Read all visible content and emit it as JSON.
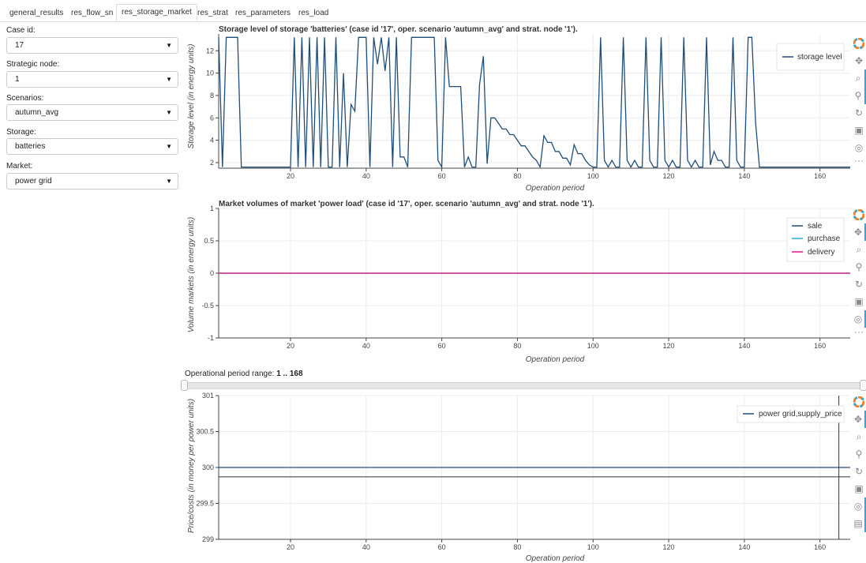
{
  "tabs": [
    {
      "label": "general_results",
      "active": false
    },
    {
      "label": "res_flow_sn",
      "active": false
    },
    {
      "label": "res_storage_market",
      "active": true
    },
    {
      "label": "res_strat",
      "active": false
    },
    {
      "label": "res_parameters",
      "active": false
    },
    {
      "label": "res_load",
      "active": false
    }
  ],
  "sidebar": {
    "case_id": {
      "label": "Case id:",
      "value": "17"
    },
    "strategic_node": {
      "label": "Strategic node:",
      "value": "1"
    },
    "scenarios": {
      "label": "Scenarios:",
      "value": "autumn_avg"
    },
    "storage": {
      "label": "Storage:",
      "value": "batteries"
    },
    "market": {
      "label": "Market:",
      "value": "power grid"
    }
  },
  "storage_chart": {
    "title": "Storage level of storage 'batteries' (case id  '17', oper. scenario 'autumn_avg' and strat. node '1').",
    "xlabel": "Operation period",
    "ylabel": "Storage level (in energy units)",
    "legend": [
      "storage level"
    ],
    "color": "#1f4e79"
  },
  "market_chart": {
    "title": "Market volumes of market 'power load' (case id  '17', oper. scenario 'autumn_avg' and strat. node '1').",
    "xlabel": "Operation period",
    "ylabel": "Volume markets (in energy units)",
    "legend": [
      "sale",
      "purchase",
      "delivery"
    ],
    "colors": [
      "#1f4e79",
      "#26aae1",
      "#e5178a"
    ]
  },
  "range": {
    "label": "Operational period range: ",
    "value": "1 .. 168",
    "min": 1,
    "max": 168
  },
  "price_chart": {
    "title": "",
    "xlabel": "Operation period",
    "ylabel": "Price/costs (in money per power units)",
    "legend": [
      "power grid,supply_price"
    ],
    "color": "#1f4e79"
  },
  "toolbar_icons": [
    "bokeh-logo-icon",
    "pan-icon",
    "box-zoom-icon",
    "wheel-zoom-icon",
    "reset-icon",
    "save-icon",
    "hover-icon",
    "more-icon"
  ],
  "chart_data": [
    {
      "type": "line",
      "title": "Storage level of storage 'batteries' (case id  '17', oper. scenario 'autumn_avg' and strat. node '1').",
      "xlabel": "Operation period",
      "ylabel": "Storage level (in energy units)",
      "xlim": [
        1,
        168
      ],
      "ylim": [
        1.5,
        13.5
      ],
      "xticks": [
        20,
        40,
        60,
        80,
        100,
        120,
        140,
        160
      ],
      "yticks": [
        2,
        4,
        6,
        8,
        10,
        12
      ],
      "grid": true,
      "legend_position": "top-right",
      "series": [
        {
          "name": "storage level",
          "x": [
            1,
            2,
            3,
            4,
            5,
            6,
            7,
            8,
            9,
            10,
            11,
            12,
            13,
            14,
            15,
            16,
            17,
            18,
            19,
            20,
            21,
            22,
            23,
            24,
            25,
            26,
            27,
            28,
            29,
            30,
            31,
            32,
            33,
            34,
            35,
            36,
            37,
            38,
            39,
            40,
            41,
            42,
            43,
            44,
            45,
            46,
            47,
            48,
            49,
            50,
            51,
            52,
            53,
            54,
            55,
            56,
            57,
            58,
            59,
            60,
            61,
            62,
            63,
            64,
            65,
            66,
            67,
            68,
            69,
            70,
            71,
            72,
            73,
            74,
            75,
            76,
            77,
            78,
            79,
            80,
            81,
            82,
            83,
            84,
            85,
            86,
            87,
            88,
            89,
            90,
            91,
            92,
            93,
            94,
            95,
            96,
            97,
            98,
            99,
            100,
            101,
            102,
            103,
            104,
            105,
            106,
            107,
            108,
            109,
            110,
            111,
            112,
            113,
            114,
            115,
            116,
            117,
            118,
            119,
            120,
            121,
            122,
            123,
            124,
            125,
            126,
            127,
            128,
            129,
            130,
            131,
            132,
            133,
            134,
            135,
            136,
            137,
            138,
            139,
            140,
            141,
            142,
            143,
            144,
            145,
            146,
            147,
            148,
            149,
            150,
            151,
            152,
            153,
            154,
            155,
            156,
            157,
            158,
            159,
            160,
            161,
            162,
            163,
            164,
            165,
            166,
            167,
            168
          ],
          "y": [
            13.2,
            1.6,
            13.2,
            13.2,
            13.2,
            13.2,
            1.6,
            1.6,
            1.6,
            1.6,
            1.6,
            1.6,
            1.6,
            1.6,
            1.6,
            1.6,
            1.6,
            1.6,
            1.6,
            1.6,
            13.2,
            1.6,
            13.2,
            1.6,
            13.2,
            1.6,
            13.2,
            1.6,
            13.2,
            1.6,
            1.6,
            13.2,
            1.6,
            10.0,
            1.6,
            7.2,
            6.6,
            13.2,
            13.2,
            13.2,
            1.6,
            13.2,
            10.8,
            13.2,
            10.2,
            13.2,
            1.6,
            13.2,
            2.5,
            2.5,
            1.6,
            13.2,
            13.2,
            13.2,
            13.2,
            13.2,
            13.2,
            13.2,
            2.2,
            1.6,
            13.2,
            8.8,
            8.8,
            8.8,
            8.8,
            1.6,
            2.5,
            1.6,
            1.6,
            9.0,
            11.5,
            1.9,
            6.0,
            6.0,
            5.5,
            5.0,
            5.0,
            4.5,
            4.5,
            4.0,
            3.5,
            3.5,
            3.0,
            2.5,
            2.2,
            1.6,
            4.4,
            3.8,
            3.8,
            3.0,
            3.0,
            2.4,
            2.4,
            1.8,
            3.6,
            2.8,
            2.8,
            2.2,
            1.8,
            1.6,
            1.6,
            13.2,
            2.2,
            1.6,
            2.2,
            1.6,
            1.6,
            13.2,
            2.2,
            1.6,
            2.2,
            1.6,
            1.6,
            13.2,
            2.2,
            1.6,
            1.6,
            13.2,
            2.2,
            1.6,
            2.2,
            1.6,
            1.6,
            13.2,
            2.2,
            1.6,
            2.2,
            1.6,
            1.6,
            13.2,
            1.8,
            3.0,
            2.2,
            2.2,
            1.6,
            1.6,
            13.2,
            2.2,
            1.6,
            1.6,
            13.2,
            13.2,
            5.5,
            1.6,
            1.6,
            1.6,
            1.6,
            1.6,
            1.6,
            1.6,
            1.6,
            1.6,
            1.6,
            1.6,
            1.6,
            1.6,
            1.6,
            1.6,
            1.6,
            1.6,
            1.6,
            1.6,
            1.6,
            1.6,
            1.6,
            1.6,
            1.6,
            1.6
          ]
        }
      ]
    },
    {
      "type": "line",
      "title": "Market volumes of market 'power load' (case id  '17', oper. scenario 'autumn_avg' and strat. node '1').",
      "xlabel": "Operation period",
      "ylabel": "Volume markets (in energy units)",
      "xlim": [
        1,
        168
      ],
      "ylim": [
        -1,
        1
      ],
      "xticks": [
        20,
        40,
        60,
        80,
        100,
        120,
        140,
        160
      ],
      "yticks": [
        -1,
        -0.5,
        0,
        0.5,
        1
      ],
      "grid": true,
      "legend_position": "top-right",
      "series": [
        {
          "name": "sale",
          "x": [
            1,
            168
          ],
          "y": [
            0,
            0
          ]
        },
        {
          "name": "purchase",
          "x": [
            1,
            168
          ],
          "y": [
            0,
            0
          ]
        },
        {
          "name": "delivery",
          "x": [
            1,
            168
          ],
          "y": [
            0,
            0
          ]
        }
      ]
    },
    {
      "type": "line",
      "xlabel": "Operation period",
      "ylabel": "Price/costs (in money per power units)",
      "xlim": [
        1,
        168
      ],
      "ylim": [
        299,
        301
      ],
      "xticks": [
        20,
        40,
        60,
        80,
        100,
        120,
        140,
        160
      ],
      "yticks": [
        299,
        299.5,
        300,
        300.5,
        301
      ],
      "grid": true,
      "legend_position": "top-right",
      "crosshair": {
        "x": 165,
        "y": 299.87
      },
      "series": [
        {
          "name": "power grid,supply_price",
          "x": [
            1,
            168
          ],
          "y": [
            300,
            300
          ]
        }
      ]
    }
  ]
}
